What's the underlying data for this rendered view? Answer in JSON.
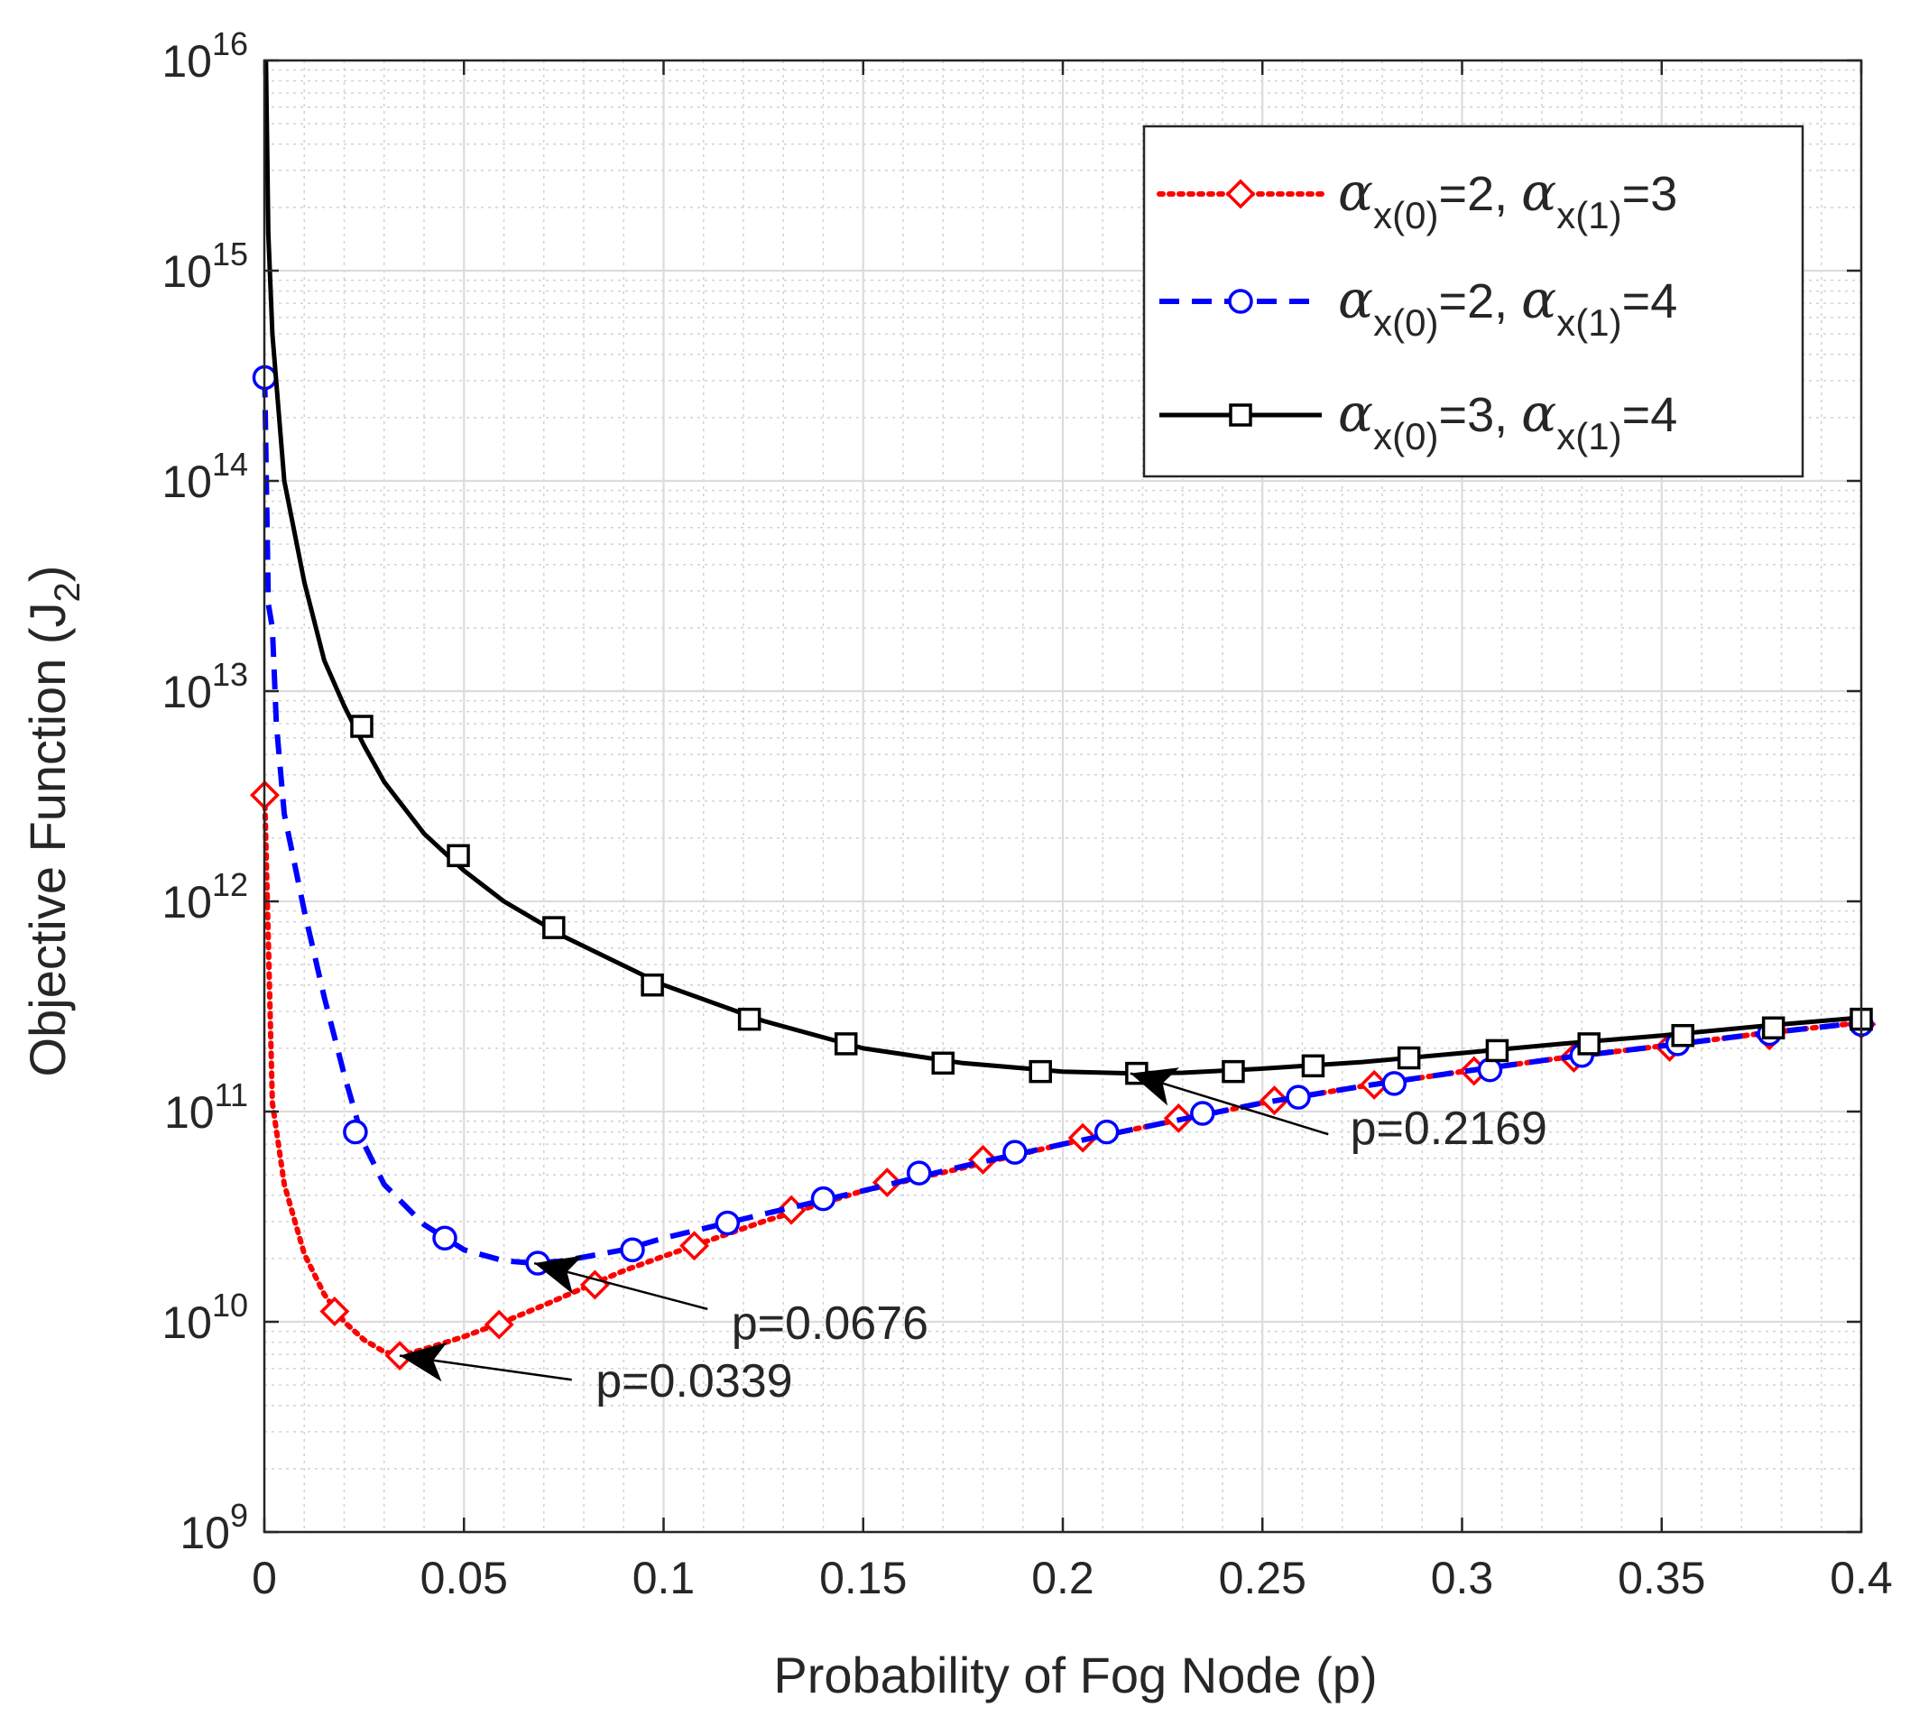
{
  "chart_data": {
    "type": "line",
    "title": "",
    "xlabel": "Probability of Fog Node (p)",
    "ylabel": {
      "main": "Objective Function (J",
      "sub": "2",
      "close": ")"
    },
    "xscale": "linear",
    "yscale": "log",
    "xlim": [
      0,
      0.4
    ],
    "ylim": [
      1000000000.0,
      1e+16
    ],
    "grid": true,
    "minor_grid": true,
    "x_ticks": [
      {
        "value": 0,
        "label": "0"
      },
      {
        "value": 0.05,
        "label": "0.05"
      },
      {
        "value": 0.1,
        "label": "0.1"
      },
      {
        "value": 0.15,
        "label": "0.15"
      },
      {
        "value": 0.2,
        "label": "0.2"
      },
      {
        "value": 0.25,
        "label": "0.25"
      },
      {
        "value": 0.3,
        "label": "0.3"
      },
      {
        "value": 0.35,
        "label": "0.35"
      },
      {
        "value": 0.4,
        "label": "0.4"
      }
    ],
    "y_ticks": [
      {
        "exp": 9,
        "base": "10",
        "sup": "9"
      },
      {
        "exp": 10,
        "base": "10",
        "sup": "10"
      },
      {
        "exp": 11,
        "base": "10",
        "sup": "11"
      },
      {
        "exp": 12,
        "base": "10",
        "sup": "12"
      },
      {
        "exp": 13,
        "base": "10",
        "sup": "13"
      },
      {
        "exp": 14,
        "base": "10",
        "sup": "14"
      },
      {
        "exp": 15,
        "base": "10",
        "sup": "15"
      },
      {
        "exp": 16,
        "base": "10",
        "sup": "16"
      }
    ],
    "legend_position": "top-right",
    "series": [
      {
        "name": "α_x(0)=2, α_x(1)=3",
        "label": {
          "a0": "2",
          "a1": "3"
        },
        "color": "#ff0000",
        "dash": "dotted",
        "marker": "diamond",
        "curve": [
          [
            0.0001,
            3200000000000.0
          ],
          [
            0.002,
            110000000000.0
          ],
          [
            0.005,
            45000000000.0
          ],
          [
            0.01,
            21000000000.0
          ],
          [
            0.015,
            13500000000.0
          ],
          [
            0.02,
            10000000000.0
          ],
          [
            0.025,
            8200000000.0
          ],
          [
            0.03,
            7200000000.0
          ],
          [
            0.0339,
            6900000000.0
          ],
          [
            0.04,
            7400000000.0
          ],
          [
            0.05,
            8500000000.0
          ],
          [
            0.06,
            10000000000.0
          ],
          [
            0.07,
            12000000000.0
          ],
          [
            0.08,
            14500000000.0
          ],
          [
            0.09,
            17500000000.0
          ],
          [
            0.1,
            20500000000.0
          ],
          [
            0.125,
            30000000000.0
          ],
          [
            0.15,
            42000000000.0
          ],
          [
            0.175,
            54000000000.0
          ],
          [
            0.2,
            70000000000.0
          ],
          [
            0.225,
            88000000000.0
          ],
          [
            0.25,
            110000000000.0
          ],
          [
            0.275,
            132000000000.0
          ],
          [
            0.3,
            155000000000.0
          ],
          [
            0.325,
            180000000000.0
          ],
          [
            0.35,
            205000000000.0
          ],
          [
            0.375,
            235000000000.0
          ],
          [
            0.4,
            265000000000.0
          ]
        ],
        "markers": [
          [
            0.0001,
            3200000000000.0
          ],
          [
            0.0176,
            11200000000.0
          ],
          [
            0.0339,
            6900000000.0
          ],
          [
            0.0588,
            9700000000.0
          ],
          [
            0.0828,
            15000000000.0
          ],
          [
            0.1077,
            23000000000.0
          ],
          [
            0.132,
            34000000000.0
          ],
          [
            0.156,
            46000000000.0
          ],
          [
            0.18,
            59000000000.0
          ],
          [
            0.205,
            75000000000.0
          ],
          [
            0.229,
            93000000000.0
          ],
          [
            0.253,
            113000000000.0
          ],
          [
            0.278,
            134000000000.0
          ],
          [
            0.303,
            156000000000.0
          ],
          [
            0.328,
            180000000000.0
          ],
          [
            0.352,
            203000000000.0
          ],
          [
            0.377,
            230000000000.0
          ],
          [
            0.4,
            260000000000.0
          ]
        ]
      },
      {
        "name": "α_x(0)=2, α_x(1)=4",
        "label": {
          "a0": "2",
          "a1": "4"
        },
        "color": "#0000ff",
        "dash": "dashed",
        "marker": "circle",
        "curve": [
          [
            0.0001,
            310000000000000.0
          ],
          [
            0.001,
            26000000000000.0
          ],
          [
            0.002,
            20000000000000.0
          ],
          [
            0.003,
            7000000000000.0
          ],
          [
            0.005,
            2600000000000.0
          ],
          [
            0.01,
            900000000000.0
          ],
          [
            0.015,
            350000000000.0
          ],
          [
            0.02,
            150000000000.0
          ],
          [
            0.025,
            70000000000.0
          ],
          [
            0.03,
            45000000000.0
          ],
          [
            0.04,
            29000000000.0
          ],
          [
            0.05,
            22000000000.0
          ],
          [
            0.06,
            19500000000.0
          ],
          [
            0.0676,
            19000000000.0
          ],
          [
            0.075,
            19500000000.0
          ],
          [
            0.09,
            22000000000.0
          ],
          [
            0.1,
            25000000000.0
          ],
          [
            0.125,
            32500000000.0
          ],
          [
            0.15,
            42000000000.0
          ],
          [
            0.175,
            55000000000.0
          ],
          [
            0.2,
            70000000000.0
          ],
          [
            0.225,
            88000000000.0
          ],
          [
            0.25,
            110000000000.0
          ],
          [
            0.275,
            132000000000.0
          ],
          [
            0.3,
            155000000000.0
          ],
          [
            0.325,
            180000000000.0
          ],
          [
            0.35,
            205000000000.0
          ],
          [
            0.375,
            235000000000.0
          ],
          [
            0.4,
            265000000000.0
          ]
        ],
        "markers": [
          [
            0.0001,
            310000000000000.0
          ],
          [
            0.0228,
            80000000000.0
          ],
          [
            0.0452,
            25000000000.0
          ],
          [
            0.0685,
            19000000000.0
          ],
          [
            0.0922,
            22000000000.0
          ],
          [
            0.116,
            29500000000.0
          ],
          [
            0.14,
            38500000000.0
          ],
          [
            0.164,
            51000000000.0
          ],
          [
            0.188,
            64000000000.0
          ],
          [
            0.211,
            80000000000.0
          ],
          [
            0.235,
            98000000000.0
          ],
          [
            0.259,
            117000000000.0
          ],
          [
            0.283,
            136000000000.0
          ],
          [
            0.307,
            158000000000.0
          ],
          [
            0.33,
            185000000000.0
          ],
          [
            0.354,
            210000000000.0
          ],
          [
            0.377,
            235000000000.0
          ],
          [
            0.4,
            260000000000.0
          ]
        ]
      },
      {
        "name": "α_x(0)=3, α_x(1)=4",
        "label": {
          "a0": "3",
          "a1": "4"
        },
        "color": "#000000",
        "dash": "solid",
        "marker": "square",
        "curve": [
          [
            0.0004,
            1e+16
          ],
          [
            0.001,
            1500000000000000.0
          ],
          [
            0.002,
            500000000000000.0
          ],
          [
            0.005,
            100000000000000.0
          ],
          [
            0.01,
            33000000000000.0
          ],
          [
            0.015,
            14000000000000.0
          ],
          [
            0.02,
            8500000000000.0
          ],
          [
            0.025,
            5500000000000.0
          ],
          [
            0.03,
            3700000000000.0
          ],
          [
            0.04,
            2100000000000.0
          ],
          [
            0.05,
            1400000000000.0
          ],
          [
            0.06,
            1000000000000.0
          ],
          [
            0.075,
            680000000000.0
          ],
          [
            0.1,
            400000000000.0
          ],
          [
            0.125,
            270000000000.0
          ],
          [
            0.15,
            200000000000.0
          ],
          [
            0.175,
            170000000000.0
          ],
          [
            0.2,
            155000000000.0
          ],
          [
            0.2169,
            152000000000.0
          ],
          [
            0.23,
            153000000000.0
          ],
          [
            0.25,
            160000000000.0
          ],
          [
            0.275,
            172000000000.0
          ],
          [
            0.3,
            190000000000.0
          ],
          [
            0.325,
            210000000000.0
          ],
          [
            0.35,
            230000000000.0
          ],
          [
            0.375,
            255000000000.0
          ],
          [
            0.4,
            280000000000.0
          ]
        ],
        "markers": [
          [
            0.0244,
            6800000000000.0
          ],
          [
            0.0486,
            1650000000000.0
          ],
          [
            0.0725,
            750000000000.0
          ],
          [
            0.0972,
            400000000000.0
          ],
          [
            0.1215,
            275000000000.0
          ],
          [
            0.1457,
            210000000000.0
          ],
          [
            0.17,
            170000000000.0
          ],
          [
            0.1944,
            155000000000.0
          ],
          [
            0.2185,
            152000000000.0
          ],
          [
            0.2427,
            155000000000.0
          ],
          [
            0.2627,
            165000000000.0
          ],
          [
            0.2867,
            180000000000.0
          ],
          [
            0.3088,
            195000000000.0
          ],
          [
            0.3318,
            210000000000.0
          ],
          [
            0.3553,
            230000000000.0
          ],
          [
            0.378,
            250000000000.0
          ],
          [
            0.4,
            275000000000.0
          ]
        ]
      }
    ],
    "annotations": [
      {
        "text": "p=0.2169",
        "text_at": [
          0.272,
          70000000000.0
        ],
        "arrow_from": [
          0.2665,
          78000000000.0
        ],
        "arrow_to": [
          0.2169,
          152000000000.0
        ]
      },
      {
        "text": "p=0.0676",
        "text_at": [
          0.117,
          8300000000.0
        ],
        "arrow_from": [
          0.111,
          11500000000.0
        ],
        "arrow_to": [
          0.0676,
          19000000000.0
        ]
      },
      {
        "text": "p=0.0339",
        "text_at": [
          0.083,
          4400000000.0
        ],
        "arrow_from": [
          0.077,
          5300000000.0
        ],
        "arrow_to": [
          0.0339,
          6900000000.0
        ]
      }
    ]
  }
}
